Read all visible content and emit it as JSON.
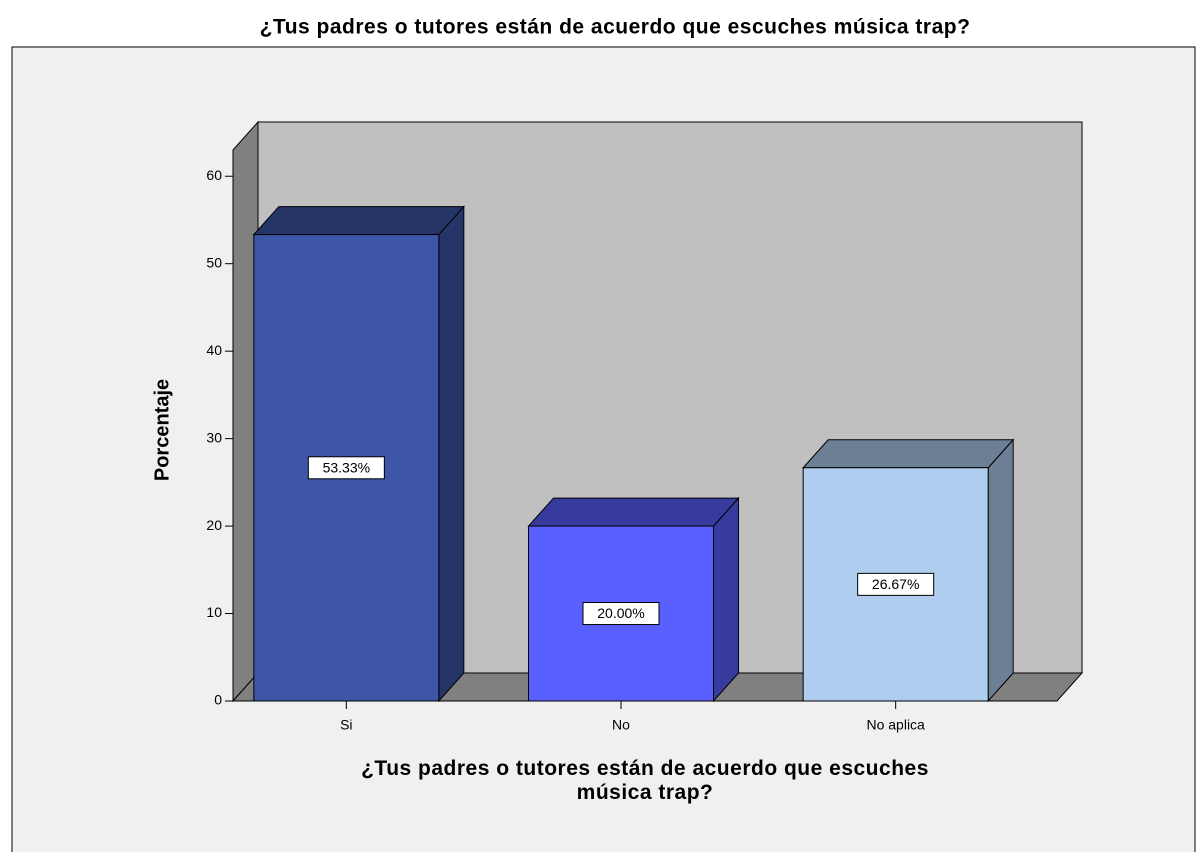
{
  "chart_data": {
    "type": "bar3d",
    "title": "¿Tus padres o tutores están de acuerdo que escuches música trap?",
    "xlabel": "¿Tus padres o tutores están de acuerdo que escuches música trap?",
    "ylabel": "Porcentaje",
    "categories": [
      "Si",
      "No",
      "No aplica"
    ],
    "values": [
      53.33,
      20.0,
      26.67
    ],
    "value_labels": [
      "53.33%",
      "20.00%",
      "26.67%"
    ],
    "colors": [
      "#3d56a8",
      "#5a5fff",
      "#aecdef"
    ],
    "ylim": [
      0,
      63
    ],
    "yticks": [
      0,
      10,
      20,
      30,
      40,
      50,
      60
    ]
  }
}
